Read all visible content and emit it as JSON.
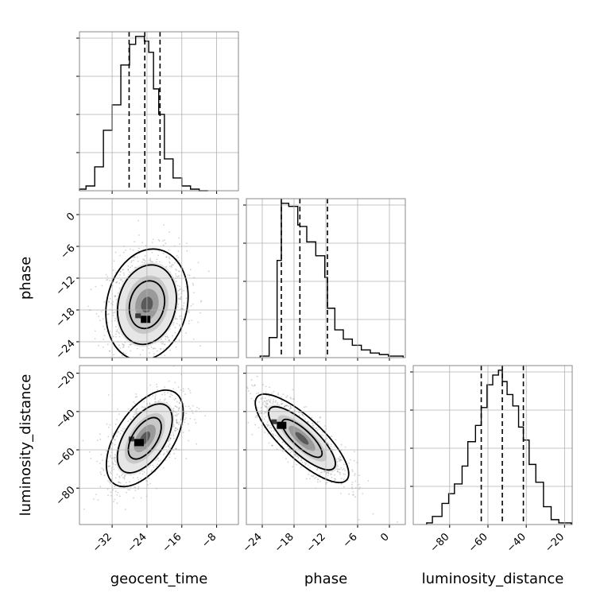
{
  "chart_data": {
    "type": "corner",
    "parameters": [
      "geocent_time",
      "phase",
      "luminosity_distance"
    ],
    "axis_labels": {
      "x": [
        "geocent_time",
        "phase",
        "luminosity_distance"
      ],
      "y": [
        "phase",
        "luminosity_distance"
      ]
    },
    "ranges": {
      "geocent_time": [
        -39.5,
        -3.0
      ],
      "phase": [
        -27.0,
        3.0
      ],
      "luminosity_distance": [
        -99.0,
        -16.0
      ]
    },
    "ticks": {
      "geocent_time": [
        -32,
        -24,
        -16,
        -8
      ],
      "phase": [
        -24,
        -18,
        -12,
        -6,
        0
      ],
      "luminosity_distance": [
        -80,
        -60,
        -40,
        -20
      ]
    },
    "quantiles": {
      "geocent_time": [
        -28.1,
        -24.5,
        -21.0
      ],
      "phase": [
        -20.4,
        -16.9,
        -11.7
      ],
      "luminosity_distance": [
        -63.5,
        -52.5,
        -41.5
      ]
    },
    "histograms": {
      "geocent_time": {
        "edges": [
          -39.5,
          -38.0,
          -36.0,
          -34.0,
          -32.0,
          -30.0,
          -28.0,
          -26.6,
          -25.6,
          -24.6,
          -23.6,
          -22.5,
          -21.3,
          -20.0,
          -18.0,
          -16.0,
          -14.0,
          -12.0,
          -10.0
        ],
        "counts": [
          1,
          3,
          15,
          38,
          54,
          79,
          92,
          97,
          97,
          94,
          87,
          64,
          48,
          20,
          8,
          3,
          1,
          0
        ]
      },
      "phase": {
        "edges": [
          -24.4,
          -22.7,
          -21.2,
          -20.4,
          -19.0,
          -17.3,
          -16.9,
          -15.6,
          -13.9,
          -12.2,
          -11.7,
          -10.3,
          -8.7,
          -7.0,
          -5.3,
          -3.6,
          -1.9,
          -0.2,
          2.6
        ],
        "counts": [
          1,
          13,
          63,
          100,
          98,
          86,
          85,
          75,
          66,
          52,
          32,
          18,
          12,
          8,
          5,
          3,
          2,
          1
        ]
      },
      "luminosity_distance": {
        "edges": [
          -92.0,
          -89.0,
          -84.0,
          -80.5,
          -77.5,
          -73.5,
          -70.5,
          -66.5,
          -63.5,
          -60.5,
          -57.5,
          -54.5,
          -52.5,
          -50.0,
          -47.0,
          -44.0,
          -41.5,
          -38.5,
          -35.0,
          -31.0,
          -27.0,
          -23.0,
          -20.5,
          -16.5
        ],
        "counts": [
          1,
          5,
          13,
          19,
          25,
          36,
          51,
          61,
          72,
          86,
          92,
          95,
          88,
          80,
          73,
          60,
          52,
          37,
          26,
          11,
          3,
          1,
          1
        ]
      }
    },
    "density_2d": [
      {
        "x": "geocent_time",
        "y": "phase",
        "center": [
          -24,
          -17
        ],
        "mode": [
          -24.5,
          -19.7
        ],
        "spread": [
          4.5,
          5.0
        ],
        "correlation": 0.15
      },
      {
        "x": "geocent_time",
        "y": "luminosity_distance",
        "center": [
          -24.5,
          -54
        ],
        "mode": [
          -26.0,
          -56.0
        ],
        "spread": [
          4.2,
          12.0
        ],
        "correlation": 0.55
      },
      {
        "x": "phase",
        "y": "luminosity_distance",
        "center": [
          -16.5,
          -54
        ],
        "mode": [
          -20.5,
          -47.0
        ],
        "spread": [
          4.2,
          11.0
        ],
        "correlation": -0.8
      }
    ],
    "grid": true,
    "colors": {
      "lines": "#000000",
      "points": "#9a9a9a",
      "grid": "#b0b0b0",
      "panel_border": "#888888"
    }
  }
}
